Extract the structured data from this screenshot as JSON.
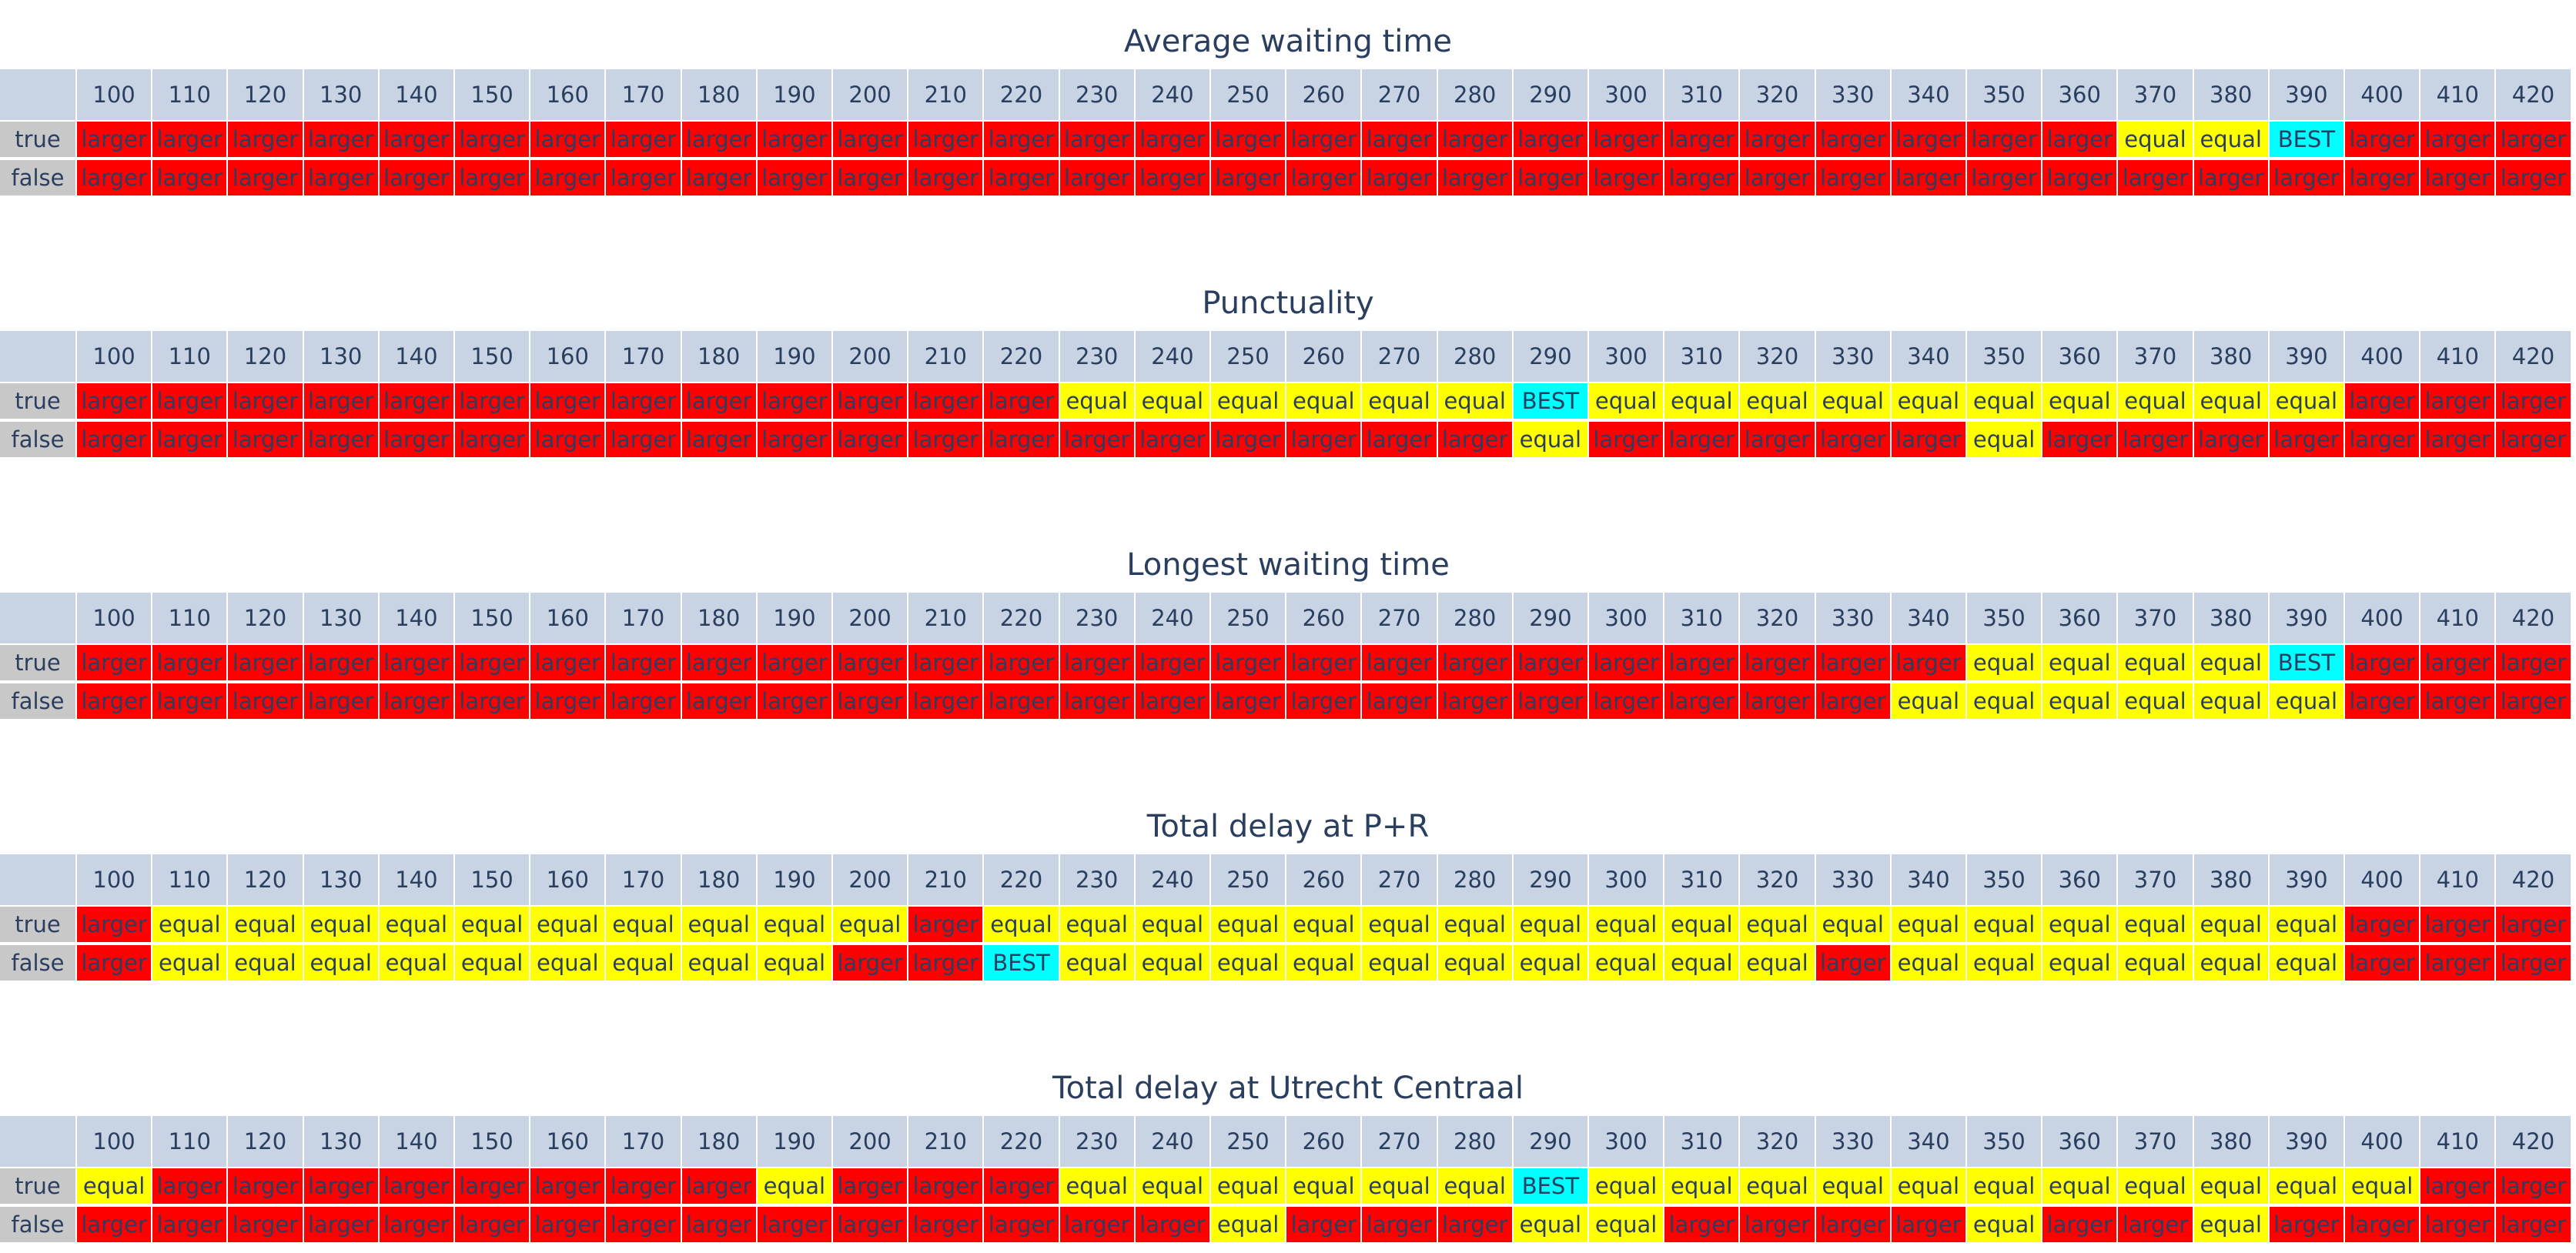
{
  "colors": {
    "larger": "#ff0000",
    "equal": "#ffff00",
    "BEST": "#00ffff",
    "header": "#c8d4e3",
    "rowlabel": "#c8c8c8",
    "text": "#2a3f5f"
  },
  "chart_data": [
    {
      "type": "table",
      "title": "Average waiting time",
      "columns": [
        "100",
        "110",
        "120",
        "130",
        "140",
        "150",
        "160",
        "170",
        "180",
        "190",
        "200",
        "210",
        "220",
        "230",
        "240",
        "250",
        "260",
        "270",
        "280",
        "290",
        "300",
        "310",
        "320",
        "330",
        "340",
        "350",
        "360",
        "370",
        "380",
        "390",
        "400",
        "410",
        "420"
      ],
      "rows": [
        {
          "label": "true",
          "values": [
            "larger",
            "larger",
            "larger",
            "larger",
            "larger",
            "larger",
            "larger",
            "larger",
            "larger",
            "larger",
            "larger",
            "larger",
            "larger",
            "larger",
            "larger",
            "larger",
            "larger",
            "larger",
            "larger",
            "larger",
            "larger",
            "larger",
            "larger",
            "larger",
            "larger",
            "larger",
            "larger",
            "equal",
            "equal",
            "BEST",
            "larger",
            "larger",
            "larger"
          ]
        },
        {
          "label": "false",
          "values": [
            "larger",
            "larger",
            "larger",
            "larger",
            "larger",
            "larger",
            "larger",
            "larger",
            "larger",
            "larger",
            "larger",
            "larger",
            "larger",
            "larger",
            "larger",
            "larger",
            "larger",
            "larger",
            "larger",
            "larger",
            "larger",
            "larger",
            "larger",
            "larger",
            "larger",
            "larger",
            "larger",
            "larger",
            "larger",
            "larger",
            "larger",
            "larger",
            "larger"
          ]
        }
      ]
    },
    {
      "type": "table",
      "title": "Punctuality",
      "columns": [
        "100",
        "110",
        "120",
        "130",
        "140",
        "150",
        "160",
        "170",
        "180",
        "190",
        "200",
        "210",
        "220",
        "230",
        "240",
        "250",
        "260",
        "270",
        "280",
        "290",
        "300",
        "310",
        "320",
        "330",
        "340",
        "350",
        "360",
        "370",
        "380",
        "390",
        "400",
        "410",
        "420"
      ],
      "rows": [
        {
          "label": "true",
          "values": [
            "larger",
            "larger",
            "larger",
            "larger",
            "larger",
            "larger",
            "larger",
            "larger",
            "larger",
            "larger",
            "larger",
            "larger",
            "larger",
            "equal",
            "equal",
            "equal",
            "equal",
            "equal",
            "equal",
            "BEST",
            "equal",
            "equal",
            "equal",
            "equal",
            "equal",
            "equal",
            "equal",
            "equal",
            "equal",
            "equal",
            "larger",
            "larger",
            "larger"
          ]
        },
        {
          "label": "false",
          "values": [
            "larger",
            "larger",
            "larger",
            "larger",
            "larger",
            "larger",
            "larger",
            "larger",
            "larger",
            "larger",
            "larger",
            "larger",
            "larger",
            "larger",
            "larger",
            "larger",
            "larger",
            "larger",
            "larger",
            "equal",
            "larger",
            "larger",
            "larger",
            "larger",
            "larger",
            "equal",
            "larger",
            "larger",
            "larger",
            "larger",
            "larger",
            "larger",
            "larger"
          ]
        }
      ]
    },
    {
      "type": "table",
      "title": "Longest waiting time",
      "columns": [
        "100",
        "110",
        "120",
        "130",
        "140",
        "150",
        "160",
        "170",
        "180",
        "190",
        "200",
        "210",
        "220",
        "230",
        "240",
        "250",
        "260",
        "270",
        "280",
        "290",
        "300",
        "310",
        "320",
        "330",
        "340",
        "350",
        "360",
        "370",
        "380",
        "390",
        "400",
        "410",
        "420"
      ],
      "rows": [
        {
          "label": "true",
          "values": [
            "larger",
            "larger",
            "larger",
            "larger",
            "larger",
            "larger",
            "larger",
            "larger",
            "larger",
            "larger",
            "larger",
            "larger",
            "larger",
            "larger",
            "larger",
            "larger",
            "larger",
            "larger",
            "larger",
            "larger",
            "larger",
            "larger",
            "larger",
            "larger",
            "larger",
            "equal",
            "equal",
            "equal",
            "equal",
            "BEST",
            "larger",
            "larger",
            "larger"
          ]
        },
        {
          "label": "false",
          "values": [
            "larger",
            "larger",
            "larger",
            "larger",
            "larger",
            "larger",
            "larger",
            "larger",
            "larger",
            "larger",
            "larger",
            "larger",
            "larger",
            "larger",
            "larger",
            "larger",
            "larger",
            "larger",
            "larger",
            "larger",
            "larger",
            "larger",
            "larger",
            "larger",
            "equal",
            "equal",
            "equal",
            "equal",
            "equal",
            "equal",
            "larger",
            "larger",
            "larger"
          ]
        }
      ]
    },
    {
      "type": "table",
      "title": "Total delay at P+R",
      "columns": [
        "100",
        "110",
        "120",
        "130",
        "140",
        "150",
        "160",
        "170",
        "180",
        "190",
        "200",
        "210",
        "220",
        "230",
        "240",
        "250",
        "260",
        "270",
        "280",
        "290",
        "300",
        "310",
        "320",
        "330",
        "340",
        "350",
        "360",
        "370",
        "380",
        "390",
        "400",
        "410",
        "420"
      ],
      "rows": [
        {
          "label": "true",
          "values": [
            "larger",
            "equal",
            "equal",
            "equal",
            "equal",
            "equal",
            "equal",
            "equal",
            "equal",
            "equal",
            "equal",
            "larger",
            "equal",
            "equal",
            "equal",
            "equal",
            "equal",
            "equal",
            "equal",
            "equal",
            "equal",
            "equal",
            "equal",
            "equal",
            "equal",
            "equal",
            "equal",
            "equal",
            "equal",
            "equal",
            "larger",
            "larger",
            "larger"
          ]
        },
        {
          "label": "false",
          "values": [
            "larger",
            "equal",
            "equal",
            "equal",
            "equal",
            "equal",
            "equal",
            "equal",
            "equal",
            "equal",
            "larger",
            "larger",
            "BEST",
            "equal",
            "equal",
            "equal",
            "equal",
            "equal",
            "equal",
            "equal",
            "equal",
            "equal",
            "equal",
            "larger",
            "equal",
            "equal",
            "equal",
            "equal",
            "equal",
            "equal",
            "larger",
            "larger",
            "larger"
          ]
        }
      ]
    },
    {
      "type": "table",
      "title": "Total delay at Utrecht Centraal",
      "columns": [
        "100",
        "110",
        "120",
        "130",
        "140",
        "150",
        "160",
        "170",
        "180",
        "190",
        "200",
        "210",
        "220",
        "230",
        "240",
        "250",
        "260",
        "270",
        "280",
        "290",
        "300",
        "310",
        "320",
        "330",
        "340",
        "350",
        "360",
        "370",
        "380",
        "390",
        "400",
        "410",
        "420"
      ],
      "rows": [
        {
          "label": "true",
          "values": [
            "equal",
            "larger",
            "larger",
            "larger",
            "larger",
            "larger",
            "larger",
            "larger",
            "larger",
            "equal",
            "larger",
            "larger",
            "larger",
            "equal",
            "equal",
            "equal",
            "equal",
            "equal",
            "equal",
            "BEST",
            "equal",
            "equal",
            "equal",
            "equal",
            "equal",
            "equal",
            "equal",
            "equal",
            "equal",
            "equal",
            "equal",
            "larger",
            "larger"
          ]
        },
        {
          "label": "false",
          "values": [
            "larger",
            "larger",
            "larger",
            "larger",
            "larger",
            "larger",
            "larger",
            "larger",
            "larger",
            "larger",
            "larger",
            "larger",
            "larger",
            "larger",
            "larger",
            "equal",
            "larger",
            "larger",
            "larger",
            "equal",
            "equal",
            "larger",
            "larger",
            "larger",
            "larger",
            "equal",
            "larger",
            "larger",
            "equal",
            "larger",
            "larger",
            "larger",
            "larger"
          ]
        }
      ]
    }
  ]
}
